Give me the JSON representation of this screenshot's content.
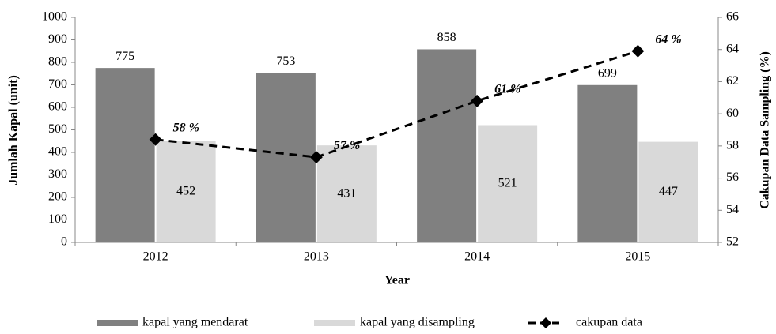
{
  "chart_data": {
    "type": "bar",
    "categories": [
      "2012",
      "2013",
      "2014",
      "2015"
    ],
    "xlabel": "Year",
    "ylabel": "Jumlah Kapal (unit)",
    "y2label": "Cakupan Data Sampling (%)",
    "ylim": [
      0,
      1000
    ],
    "yticks": [
      0,
      100,
      200,
      300,
      400,
      500,
      600,
      700,
      800,
      900,
      1000
    ],
    "y2lim": [
      52,
      66
    ],
    "y2ticks": [
      52,
      54,
      56,
      58,
      60,
      62,
      64,
      66
    ],
    "legend": "bottom",
    "series": [
      {
        "name": "kapal yang mendarat",
        "color": "#808080",
        "values": [
          775,
          753,
          858,
          699
        ]
      },
      {
        "name": "kapal yang disampling",
        "color": "#d9d9d9",
        "values": [
          452,
          431,
          521,
          447
        ]
      },
      {
        "name": "cakupan data",
        "type": "line",
        "axis": "y2",
        "color": "#000000",
        "values": [
          58.4,
          57.3,
          60.8,
          63.9
        ],
        "value_labels": [
          "58 %",
          "57 %",
          "61 %",
          "64 %"
        ]
      }
    ]
  }
}
